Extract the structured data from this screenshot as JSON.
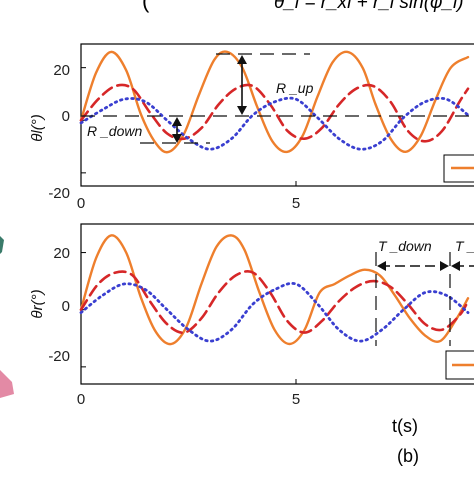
{
  "header": {
    "fragment_left": "(",
    "formula_fragment": "θ_l = r_xl + r_l sin(φ_l)"
  },
  "footer": {
    "xlabel": "t(s)",
    "panel_label": "(b)"
  },
  "colors": {
    "orange": "#EE7F2D",
    "red": "#D62728",
    "blue": "#3A3FD0",
    "axis": "#000000",
    "guide": "#111111"
  },
  "chart_data": [
    {
      "type": "line",
      "ylabel": "θl(°)",
      "xlim": [
        0,
        9
      ],
      "ylim": [
        -25,
        29
      ],
      "xticks": [
        0,
        5
      ],
      "yticks": [
        20,
        0,
        -20
      ],
      "annotations": [
        "R _up",
        "R _down"
      ],
      "series": [
        {
          "color": "orange",
          "style": "solid",
          "x": [
            0,
            0.35,
            0.7,
            1.05,
            1.4,
            1.75,
            2.05,
            2.4,
            2.75,
            3.1,
            3.4,
            3.75,
            4.1,
            4.45,
            4.8,
            5.15,
            5.5,
            5.85,
            6.2,
            6.55,
            6.85,
            7.2,
            7.55,
            7.9,
            8.25,
            8.6,
            9.0
          ],
          "y": [
            0,
            18,
            26,
            19,
            2,
            -9,
            -12,
            -5,
            10,
            23,
            26,
            20,
            5,
            -8,
            -12,
            -6,
            9,
            22,
            26,
            20,
            6,
            -7,
            -12,
            -6,
            8,
            20,
            24
          ]
        },
        {
          "color": "red",
          "style": "dashed",
          "x": [
            0,
            0.4,
            0.8,
            1.2,
            1.6,
            2.0,
            2.4,
            2.8,
            3.2,
            3.6,
            4.0,
            4.4,
            4.8,
            5.2,
            5.6,
            6.0,
            6.4,
            6.8,
            7.2,
            7.6,
            8.0,
            8.4,
            8.8,
            9.0
          ],
          "y": [
            0,
            8,
            13,
            12,
            3,
            -5,
            -7,
            -3,
            6,
            12,
            13,
            6,
            -4,
            -7,
            -3,
            6,
            12,
            13,
            7,
            -4,
            -8,
            -4,
            7,
            12
          ]
        },
        {
          "color": "blue",
          "style": "dotted",
          "x": [
            0,
            0.5,
            1.0,
            1.5,
            2.0,
            2.5,
            3.0,
            3.5,
            4.0,
            4.5,
            5.0,
            5.5,
            6.0,
            6.5,
            7.0,
            7.5,
            8.0,
            8.5,
            9.0
          ],
          "y": [
            -1,
            4,
            8,
            7,
            0,
            -7,
            -11,
            -7,
            2,
            7,
            8,
            1,
            -7,
            -11,
            -8,
            1,
            7,
            8,
            2
          ]
        }
      ]
    },
    {
      "type": "line",
      "ylabel": "θr(°)",
      "xlim": [
        0,
        9
      ],
      "ylim": [
        -26,
        30
      ],
      "xticks": [
        0,
        5
      ],
      "yticks": [
        20,
        0,
        -20
      ],
      "annotations": [
        "T _down",
        "T _"
      ],
      "series": [
        {
          "color": "orange",
          "style": "solid",
          "x": [
            0,
            0.35,
            0.7,
            1.05,
            1.4,
            1.75,
            2.1,
            2.45,
            2.8,
            3.15,
            3.5,
            3.8,
            4.15,
            4.5,
            4.85,
            5.2,
            5.55,
            5.9,
            6.25,
            6.6,
            6.95,
            7.3,
            7.65,
            8.0,
            8.35,
            8.7,
            9.0
          ],
          "y": [
            0,
            18,
            26,
            20,
            4,
            -8,
            -12,
            -6,
            9,
            22,
            26,
            21,
            6,
            -7,
            -12,
            -7,
            6,
            9,
            12,
            14,
            12,
            5,
            -3,
            -9,
            -11,
            -4,
            4
          ]
        },
        {
          "color": "red",
          "style": "dashed",
          "x": [
            0,
            0.4,
            0.8,
            1.2,
            1.6,
            2.0,
            2.4,
            2.8,
            3.2,
            3.6,
            4.0,
            4.4,
            4.8,
            5.2,
            5.6,
            6.0,
            6.4,
            6.8,
            7.2,
            7.6,
            8.0,
            8.4,
            8.8,
            9.0
          ],
          "y": [
            0,
            9,
            13,
            12,
            3,
            -5,
            -8,
            -3,
            6,
            12,
            13,
            6,
            -4,
            -8,
            -4,
            3,
            8,
            10,
            8,
            2,
            -5,
            -7,
            -2,
            3
          ]
        },
        {
          "color": "blue",
          "style": "dotted",
          "x": [
            0,
            0.5,
            1.0,
            1.5,
            2.0,
            2.5,
            3.0,
            3.5,
            4.0,
            4.5,
            5.0,
            5.5,
            6.0,
            6.5,
            7.0,
            7.5,
            8.0,
            8.5,
            9.0
          ],
          "y": [
            -1,
            5,
            9,
            7,
            0,
            -7,
            -11,
            -7,
            2,
            7,
            9,
            2,
            -7,
            -11,
            -7,
            0,
            6,
            5,
            -1
          ]
        }
      ]
    }
  ]
}
